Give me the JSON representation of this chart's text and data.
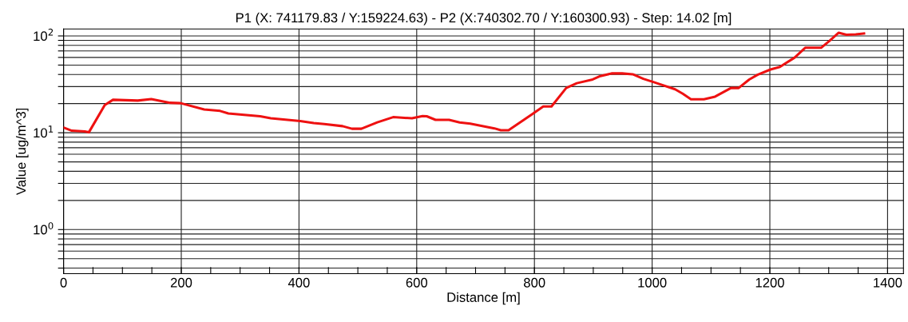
{
  "chart_data": {
    "type": "line",
    "title": "P1 (X: 741179.83 / Y:159224.63) - P2 (X:740302.70 / Y:160300.93) - Step: 14.02 [m]",
    "xlabel": "Distance [m]",
    "ylabel": "Value [ug/m^3]",
    "log": "y",
    "grid": true,
    "marker": "none",
    "line_style": "solid",
    "xlim": [
      0,
      1427
    ],
    "ylim": [
      0.35,
      118
    ],
    "xticks": [
      0,
      {
        "value": 50,
        "label": null
      },
      200,
      {
        "value": 100,
        "label": null
      },
      {
        "value": 150,
        "label": null
      },
      {
        "value": 250,
        "label": null
      },
      {
        "value": 300,
        "label": null
      },
      {
        "value": 350,
        "label": null
      },
      400,
      {
        "value": 450,
        "label": null
      },
      {
        "value": 500,
        "label": null
      },
      {
        "value": 550,
        "label": null
      },
      600,
      {
        "value": 650,
        "label": null
      },
      {
        "value": 700,
        "label": null
      },
      {
        "value": 750,
        "label": null
      },
      800,
      {
        "value": 850,
        "label": null
      },
      {
        "value": 900,
        "label": null
      },
      {
        "value": 950,
        "label": null
      },
      1000,
      {
        "value": 1050,
        "label": null
      },
      {
        "value": 1100,
        "label": null
      },
      {
        "value": 1150,
        "label": null
      },
      1200,
      {
        "value": 1250,
        "label": null
      },
      {
        "value": 1300,
        "label": null
      },
      {
        "value": 1350,
        "label": null
      },
      1400
    ],
    "yticks": [
      {
        "value": 0.4,
        "label": null
      },
      {
        "value": 0.5,
        "label": null
      },
      {
        "value": 0.6,
        "label": null
      },
      {
        "value": 0.7,
        "label": null
      },
      {
        "value": 0.8,
        "label": null
      },
      {
        "value": 0.9,
        "label": null
      },
      {
        "value": 1,
        "label": "10$^{0}$"
      },
      {
        "value": 2,
        "label": null
      },
      {
        "value": 3,
        "label": null
      },
      {
        "value": 4,
        "label": null
      },
      {
        "value": 5,
        "label": null
      },
      {
        "value": 6,
        "label": null
      },
      {
        "value": 7,
        "label": null
      },
      {
        "value": 8,
        "label": null
      },
      {
        "value": 9,
        "label": null
      },
      {
        "value": 10,
        "label": "10$^{1}$"
      },
      {
        "value": 20,
        "label": null
      },
      {
        "value": 30,
        "label": null
      },
      {
        "value": 40,
        "label": null
      },
      {
        "value": 50,
        "label": null
      },
      {
        "value": 60,
        "label": null
      },
      {
        "value": 70,
        "label": null
      },
      {
        "value": 80,
        "label": null
      },
      {
        "value": 90,
        "label": null
      },
      {
        "value": 100,
        "label": "10$^{2}$"
      }
    ],
    "series": [
      {
        "color": "#ee1111",
        "x": [
          0,
          14,
          36,
          43,
          70,
          84,
          126,
          149,
          181,
          199,
          239,
          266,
          280,
          334,
          352,
          402,
          425,
          443,
          474,
          490,
          506,
          533,
          560,
          592,
          610,
          617,
          632,
          655,
          673,
          691,
          732,
          743,
          756,
          797,
          815,
          829,
          854,
          872,
          899,
          912,
          931,
          949,
          967,
          985,
          1003,
          1039,
          1052,
          1066,
          1088,
          1107,
          1134,
          1147,
          1165,
          1179,
          1201,
          1217,
          1242,
          1260,
          1287,
          1301,
          1317,
          1330,
          1346,
          1360
        ],
        "values": [
          11.3,
          10.5,
          10.3,
          10.1,
          19.3,
          21.9,
          21.5,
          22.3,
          20.4,
          20.2,
          17.4,
          16.8,
          15.8,
          14.8,
          14.1,
          13.2,
          12.6,
          12.3,
          11.7,
          11.0,
          11.0,
          12.8,
          14.5,
          14.1,
          14.9,
          14.8,
          13.6,
          13.6,
          12.8,
          12.4,
          11.1,
          10.6,
          10.6,
          15.7,
          18.7,
          18.7,
          29.0,
          32.5,
          35.5,
          38.5,
          41.0,
          41.0,
          40.2,
          36.1,
          33.3,
          28.1,
          25.3,
          22.2,
          22.2,
          23.6,
          29.0,
          29.0,
          35.5,
          39.7,
          45.0,
          47.9,
          59.7,
          75.4,
          75.4,
          88.5,
          108,
          103,
          104,
          106
        ]
      }
    ]
  }
}
